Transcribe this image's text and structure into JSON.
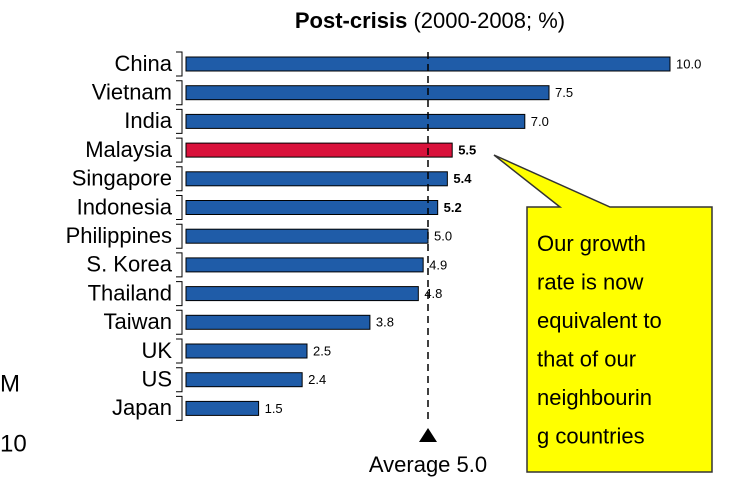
{
  "chart_data": {
    "type": "barh",
    "title": "Post-crisis",
    "subtitle": "(2000-2008; %)",
    "categories": [
      "China",
      "Vietnam",
      "India",
      "Malaysia",
      "Singapore",
      "Indonesia",
      "Philippines",
      "S. Korea",
      "Thailand",
      "Taiwan",
      "UK",
      "US",
      "Japan"
    ],
    "values": [
      10,
      7.5,
      7,
      5.5,
      5.4,
      5.2,
      5,
      4.9,
      4.8,
      3.8,
      2.5,
      2.4,
      1.5
    ],
    "value_labels": [
      "10.0",
      "7.5",
      "7.0",
      "5.5",
      "5.4",
      "5.2",
      "5.0",
      "4.9",
      "4.8",
      "3.8",
      "2.5",
      "2.4",
      "1.5"
    ],
    "colors": [
      "#1f5ca8",
      "#1f5ca8",
      "#1f5ca8",
      "#d9113b",
      "#1f5ca8",
      "#1f5ca8",
      "#1f5ca8",
      "#1f5ca8",
      "#1f5ca8",
      "#1f5ca8",
      "#1f5ca8",
      "#1f5ca8",
      "#1f5ca8"
    ],
    "bold_categories": [
      "Malaysia",
      "Singapore",
      "Indonesia"
    ],
    "xlim": [
      0,
      10
    ],
    "average": 5,
    "average_label": "Average 5.0",
    "callout": [
      "Our growth",
      "rate is now",
      "equivalent to",
      "that of our",
      "neighbourin",
      "g countries"
    ],
    "left_fragments": [
      "M",
      "10"
    ]
  }
}
